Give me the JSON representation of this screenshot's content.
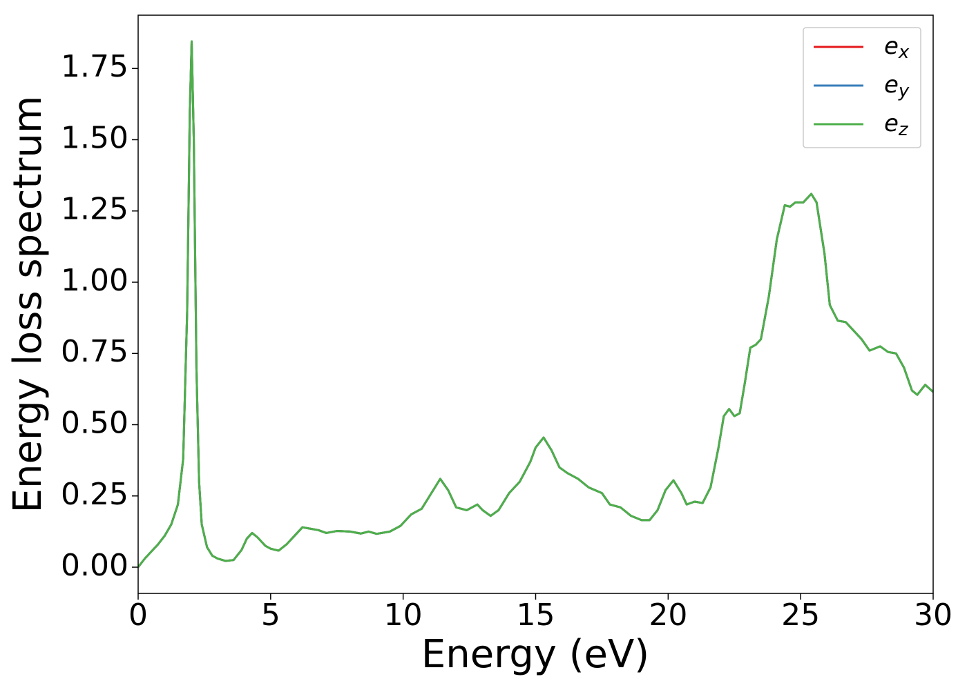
{
  "chart_data": {
    "type": "line",
    "x_label": "Energy (eV)",
    "y_label": "Energy loss spectrum",
    "x": [
      0,
      0.25,
      0.5,
      0.75,
      1.0,
      1.25,
      1.5,
      1.7,
      1.85,
      1.95,
      2.02,
      2.1,
      2.2,
      2.3,
      2.4,
      2.6,
      2.8,
      3.0,
      3.3,
      3.6,
      3.9,
      4.1,
      4.3,
      4.5,
      4.8,
      5.0,
      5.3,
      5.6,
      5.9,
      6.2,
      6.5,
      6.8,
      7.1,
      7.5,
      8.0,
      8.4,
      8.7,
      9.0,
      9.5,
      9.9,
      10.3,
      10.7,
      11.0,
      11.4,
      11.7,
      12.0,
      12.4,
      12.8,
      13.0,
      13.3,
      13.6,
      14.0,
      14.4,
      14.8,
      15.0,
      15.3,
      15.6,
      15.9,
      16.2,
      16.6,
      17.0,
      17.5,
      17.8,
      18.2,
      18.6,
      19.0,
      19.3,
      19.6,
      19.9,
      20.2,
      20.5,
      20.7,
      21.0,
      21.3,
      21.6,
      21.9,
      22.1,
      22.3,
      22.5,
      22.7,
      22.9,
      23.1,
      23.3,
      23.5,
      23.8,
      24.1,
      24.4,
      24.6,
      24.8,
      25.1,
      25.4,
      25.6,
      25.9,
      26.1,
      26.4,
      26.7,
      27.0,
      27.3,
      27.6,
      28.0,
      28.3,
      28.6,
      28.9,
      29.2,
      29.4,
      29.7,
      30.0
    ],
    "series": [
      {
        "name": "e_x",
        "color": "#e41a1c",
        "values": [
          0,
          0.03,
          0.055,
          0.08,
          0.11,
          0.15,
          0.22,
          0.38,
          0.9,
          1.6,
          1.845,
          1.5,
          0.7,
          0.3,
          0.15,
          0.07,
          0.04,
          0.03,
          0.022,
          0.025,
          0.06,
          0.1,
          0.12,
          0.105,
          0.075,
          0.065,
          0.058,
          0.08,
          0.11,
          0.14,
          0.135,
          0.13,
          0.12,
          0.127,
          0.125,
          0.118,
          0.125,
          0.117,
          0.125,
          0.145,
          0.185,
          0.205,
          0.25,
          0.31,
          0.27,
          0.21,
          0.2,
          0.22,
          0.2,
          0.18,
          0.2,
          0.26,
          0.3,
          0.37,
          0.42,
          0.455,
          0.41,
          0.35,
          0.33,
          0.31,
          0.28,
          0.26,
          0.22,
          0.21,
          0.18,
          0.165,
          0.165,
          0.2,
          0.27,
          0.305,
          0.26,
          0.22,
          0.23,
          0.225,
          0.28,
          0.42,
          0.53,
          0.555,
          0.53,
          0.54,
          0.65,
          0.77,
          0.78,
          0.8,
          0.95,
          1.15,
          1.27,
          1.265,
          1.28,
          1.28,
          1.31,
          1.28,
          1.1,
          0.92,
          0.865,
          0.86,
          0.83,
          0.8,
          0.76,
          0.775,
          0.755,
          0.75,
          0.7,
          0.62,
          0.605,
          0.64,
          0.615
        ]
      },
      {
        "name": "e_y",
        "color": "#377eb8",
        "values": [
          0,
          0.03,
          0.055,
          0.08,
          0.11,
          0.15,
          0.22,
          0.38,
          0.9,
          1.6,
          1.845,
          1.5,
          0.7,
          0.3,
          0.15,
          0.07,
          0.04,
          0.03,
          0.022,
          0.025,
          0.06,
          0.1,
          0.12,
          0.105,
          0.075,
          0.065,
          0.058,
          0.08,
          0.11,
          0.14,
          0.135,
          0.13,
          0.12,
          0.127,
          0.125,
          0.118,
          0.125,
          0.117,
          0.125,
          0.145,
          0.185,
          0.205,
          0.25,
          0.31,
          0.27,
          0.21,
          0.2,
          0.22,
          0.2,
          0.18,
          0.2,
          0.26,
          0.3,
          0.37,
          0.42,
          0.455,
          0.41,
          0.35,
          0.33,
          0.31,
          0.28,
          0.26,
          0.22,
          0.21,
          0.18,
          0.165,
          0.165,
          0.2,
          0.27,
          0.305,
          0.26,
          0.22,
          0.23,
          0.225,
          0.28,
          0.42,
          0.53,
          0.555,
          0.53,
          0.54,
          0.65,
          0.77,
          0.78,
          0.8,
          0.95,
          1.15,
          1.27,
          1.265,
          1.28,
          1.28,
          1.31,
          1.28,
          1.1,
          0.92,
          0.865,
          0.86,
          0.83,
          0.8,
          0.76,
          0.775,
          0.755,
          0.75,
          0.7,
          0.62,
          0.605,
          0.64,
          0.615
        ]
      },
      {
        "name": "e_z",
        "color": "#4daf4a",
        "values": [
          0,
          0.03,
          0.055,
          0.08,
          0.11,
          0.15,
          0.22,
          0.38,
          0.9,
          1.6,
          1.845,
          1.5,
          0.7,
          0.3,
          0.15,
          0.07,
          0.04,
          0.03,
          0.022,
          0.025,
          0.06,
          0.1,
          0.12,
          0.105,
          0.075,
          0.065,
          0.058,
          0.08,
          0.11,
          0.14,
          0.135,
          0.13,
          0.12,
          0.127,
          0.125,
          0.118,
          0.125,
          0.117,
          0.125,
          0.145,
          0.185,
          0.205,
          0.25,
          0.31,
          0.27,
          0.21,
          0.2,
          0.22,
          0.2,
          0.18,
          0.2,
          0.26,
          0.3,
          0.37,
          0.42,
          0.455,
          0.41,
          0.35,
          0.33,
          0.31,
          0.28,
          0.26,
          0.22,
          0.21,
          0.18,
          0.165,
          0.165,
          0.2,
          0.27,
          0.305,
          0.26,
          0.22,
          0.23,
          0.225,
          0.28,
          0.42,
          0.53,
          0.555,
          0.53,
          0.54,
          0.65,
          0.77,
          0.78,
          0.8,
          0.95,
          1.15,
          1.27,
          1.265,
          1.28,
          1.28,
          1.31,
          1.28,
          1.1,
          0.92,
          0.865,
          0.86,
          0.83,
          0.8,
          0.76,
          0.775,
          0.755,
          0.75,
          0.7,
          0.62,
          0.605,
          0.64,
          0.615
        ]
      }
    ],
    "xlim": [
      0,
      30
    ],
    "xticks": [
      0,
      5,
      10,
      15,
      20,
      25,
      30
    ],
    "ylim": [
      -0.092,
      1.937
    ],
    "yticks": [
      {
        "value": 0,
        "label": "0.00"
      },
      {
        "value": 0.25,
        "label": "0.25"
      },
      {
        "value": 0.5,
        "label": "0.50"
      },
      {
        "value": 0.75,
        "label": "0.75"
      },
      {
        "value": 1.0,
        "label": "1.00"
      },
      {
        "value": 1.25,
        "label": "1.25"
      },
      {
        "value": 1.5,
        "label": "1.50"
      },
      {
        "value": 1.75,
        "label": "1.75"
      }
    ],
    "grid": false,
    "legend": "upper right"
  }
}
